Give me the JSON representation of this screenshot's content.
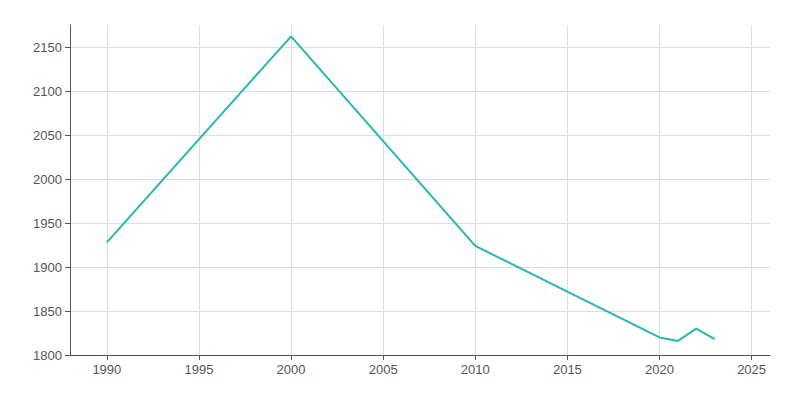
{
  "chart_data": {
    "type": "line",
    "x": [
      1990,
      2000,
      2010,
      2020,
      2021,
      2022,
      2023
    ],
    "values": [
      1928,
      2162,
      1924,
      1820,
      1816,
      1830,
      1818
    ],
    "color": "#2ab5b5",
    "xlim": [
      1988,
      2026
    ],
    "xticks": [
      1990,
      1995,
      2000,
      2005,
      2010,
      2015,
      2020,
      2025
    ],
    "ylim": [
      1800,
      2175
    ],
    "yticks": [
      1800,
      1850,
      1900,
      1950,
      2000,
      2050,
      2100,
      2150
    ],
    "grid": true
  }
}
